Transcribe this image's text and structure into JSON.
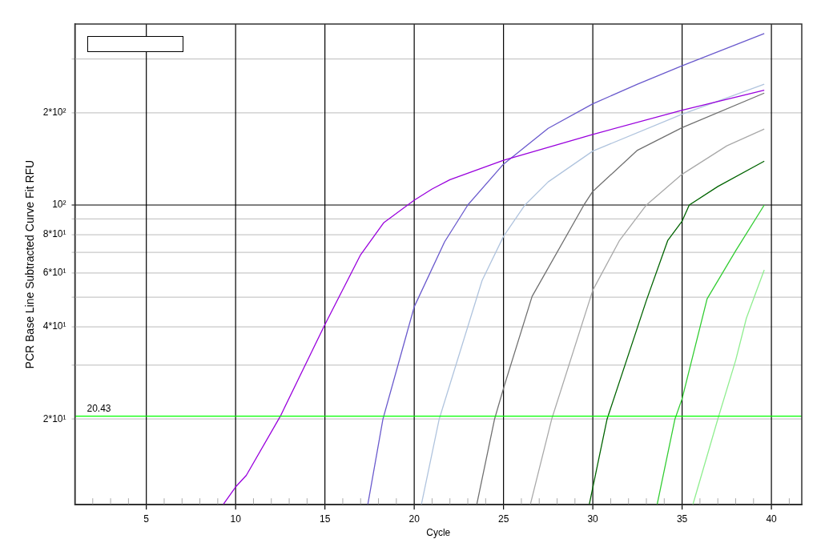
{
  "chart_data": {
    "type": "line",
    "xlabel": "Cycle",
    "ylabel": "PCR Base Line Subtracted Curve Fit RFU",
    "log": "y",
    "grid": true,
    "legend": false,
    "marker": "none",
    "line_style": "solid",
    "xlim": [
      1,
      41.7
    ],
    "ylim": [
      10.5,
      390
    ],
    "xticks": [
      {
        "value": 2,
        "label": null
      },
      {
        "value": 3,
        "label": null
      },
      {
        "value": 4,
        "label": null
      },
      5,
      {
        "value": 6,
        "label": null
      },
      {
        "value": 7,
        "label": null
      },
      {
        "value": 8,
        "label": null
      },
      {
        "value": 9,
        "label": null
      },
      10,
      {
        "value": 11,
        "label": null
      },
      {
        "value": 12,
        "label": null
      },
      {
        "value": 13,
        "label": null
      },
      {
        "value": 14,
        "label": null
      },
      15,
      {
        "value": 16,
        "label": null
      },
      {
        "value": 17,
        "label": null
      },
      {
        "value": 18,
        "label": null
      },
      {
        "value": 19,
        "label": null
      },
      20,
      {
        "value": 21,
        "label": null
      },
      {
        "value": 22,
        "label": null
      },
      {
        "value": 23,
        "label": null
      },
      {
        "value": 24,
        "label": null
      },
      25,
      {
        "value": 26,
        "label": null
      },
      {
        "value": 27,
        "label": null
      },
      {
        "value": 28,
        "label": null
      },
      {
        "value": 29,
        "label": null
      },
      30,
      {
        "value": 31,
        "label": null
      },
      {
        "value": 32,
        "label": null
      },
      {
        "value": 33,
        "label": null
      },
      {
        "value": 34,
        "label": null
      },
      35,
      {
        "value": 36,
        "label": null
      },
      {
        "value": 37,
        "label": null
      },
      {
        "value": 38,
        "label": null
      },
      {
        "value": 39,
        "label": null
      },
      40,
      {
        "value": 41,
        "label": null
      }
    ],
    "yticks": [
      {
        "value": 20,
        "label": "2*10¹"
      },
      {
        "value": 30,
        "label": null
      },
      {
        "value": 40,
        "label": "4*10¹"
      },
      {
        "value": 50,
        "label": null
      },
      {
        "value": 60,
        "label": "6*10¹"
      },
      {
        "value": 70,
        "label": null
      },
      {
        "value": 80,
        "label": "8*10¹"
      },
      {
        "value": 90,
        "label": null
      },
      {
        "value": 100,
        "label": "10²"
      },
      {
        "value": 200,
        "label": "2*10²"
      },
      {
        "value": 300,
        "label": null
      }
    ],
    "ref_lines": [
      {
        "axis": "y",
        "value": 20.43,
        "label": "20.43",
        "color": "#00ff00"
      }
    ],
    "series": [
      {
        "color": "#9900dd",
        "x": [
          9.3,
          10,
          10.6,
          12.5,
          15,
          17,
          18.3,
          20,
          21,
          22,
          25,
          30,
          35,
          39.6
        ],
        "values": [
          10.5,
          12,
          13.1,
          20.4,
          40.7,
          68.8,
          87.6,
          103.7,
          112.8,
          121,
          140,
          170,
          204,
          237
        ]
      },
      {
        "color": "#6a5acd",
        "x": [
          17.4,
          18.25,
          20,
          21.7,
          23,
          25,
          27.5,
          30,
          32.5,
          35,
          39.6
        ],
        "values": [
          10.5,
          20,
          46.5,
          75.8,
          100,
          136,
          178,
          214,
          248,
          285,
          363
        ]
      },
      {
        "color": "#b0c4de",
        "x": [
          20.4,
          21.4,
          23.8,
          25,
          26.2,
          27.5,
          30,
          35,
          39.6
        ],
        "values": [
          10.5,
          20,
          56.7,
          79,
          100,
          119,
          150,
          198,
          248
        ]
      },
      {
        "color": "#707070",
        "x": [
          23.5,
          24.5,
          25,
          26.6,
          29.5,
          30,
          32.5,
          35,
          39.6
        ],
        "values": [
          10.5,
          20,
          25.2,
          50.3,
          100,
          110.8,
          151,
          179,
          232
        ]
      },
      {
        "color": "#a9a9a9",
        "x": [
          26.5,
          27.7,
          30,
          31.5,
          33,
          35,
          37.5,
          39.6
        ],
        "values": [
          10.5,
          20,
          52.7,
          76.7,
          100,
          126,
          156,
          177
        ]
      },
      {
        "color": "#006400",
        "x": [
          29.8,
          30.8,
          33,
          34.2,
          35,
          35.4,
          37,
          39.6
        ],
        "values": [
          10.5,
          20,
          48.8,
          76.7,
          88.6,
          100,
          114.9,
          139
        ]
      },
      {
        "color": "#32cd32",
        "x": [
          33.6,
          34.6,
          35,
          36.4,
          38,
          39.6
        ],
        "values": [
          10.5,
          20,
          23.3,
          49.4,
          70.9,
          100
        ]
      },
      {
        "color": "#90ee90",
        "x": [
          35.6,
          37,
          38,
          38.6,
          39.6
        ],
        "values": [
          10.5,
          20,
          31.1,
          42.7,
          61.4
        ]
      }
    ]
  }
}
